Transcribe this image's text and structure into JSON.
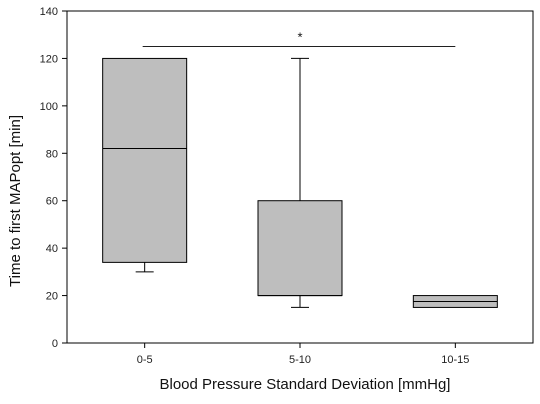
{
  "chart_data": {
    "type": "box",
    "title": "",
    "xlabel": "Blood Pressure Standard Deviation  [mmHg]",
    "ylabel": "Time to first MAPopt [min]",
    "ylim": [
      0,
      140
    ],
    "yticks": [
      0,
      20,
      40,
      60,
      80,
      100,
      120,
      140
    ],
    "grid": false,
    "box_color": "#bebebe",
    "categories": [
      "0-5",
      "5-10",
      "10-15"
    ],
    "boxes": [
      {
        "category": "0-5",
        "whisker_low": 30,
        "q1": 34,
        "median": 82,
        "q3": 120,
        "whisker_high": 120
      },
      {
        "category": "5-10",
        "whisker_low": 15,
        "q1": 20,
        "median": 20,
        "q3": 60,
        "whisker_high": 120
      },
      {
        "category": "10-15",
        "whisker_low": 15,
        "q1": 15,
        "median": 17.5,
        "q3": 20,
        "whisker_high": 20
      }
    ],
    "significance": {
      "from": "0-5",
      "to": "10-15",
      "label": "*",
      "y": 125
    }
  }
}
